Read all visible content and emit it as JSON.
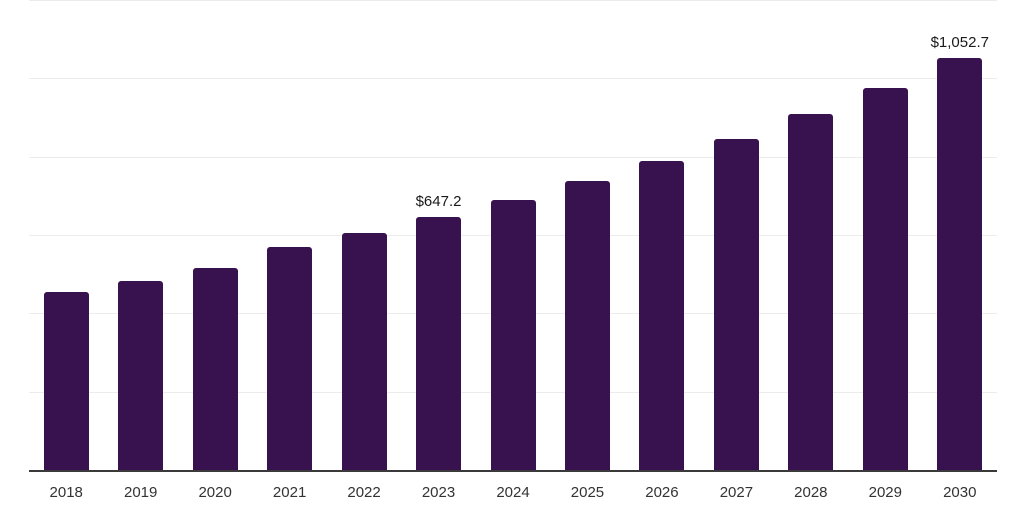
{
  "chart_data": {
    "type": "bar",
    "categories": [
      "2018",
      "2019",
      "2020",
      "2021",
      "2022",
      "2023",
      "2024",
      "2025",
      "2026",
      "2027",
      "2028",
      "2029",
      "2030"
    ],
    "values": [
      455,
      483,
      516,
      569,
      605,
      647.2,
      690,
      738,
      789,
      845,
      909,
      975,
      1052.7
    ],
    "annotations": [
      "",
      "",
      "",
      "",
      "",
      "$647.2",
      "",
      "",
      "",
      "",
      "",
      "",
      "$1,052.7"
    ],
    "ylim": [
      0,
      1200
    ],
    "gridline_interval": 200,
    "grid": "horizontal-only",
    "legend": "none",
    "title": "",
    "xlabel": "",
    "ylabel": "",
    "colors": {
      "bar": "#38124e",
      "gridline": "#ececec",
      "axis_line": "#3a3a3a",
      "tick_label": "#333333",
      "annotation_text": "#1a1a1a",
      "background": "#ffffff"
    }
  }
}
